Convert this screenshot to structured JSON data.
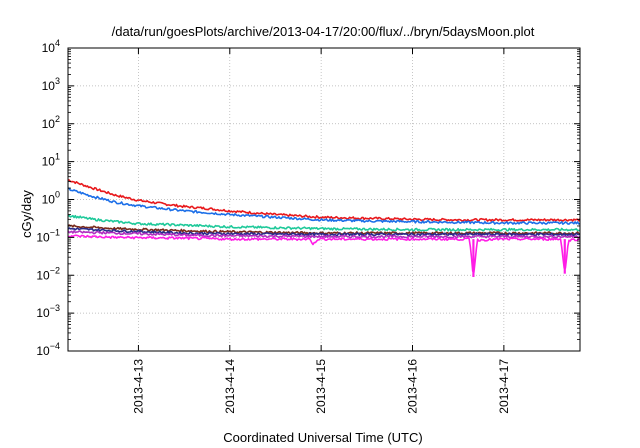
{
  "chart_data": {
    "type": "line",
    "title": "/data/run/goesPlots/archive/2013-04-17/20:00/flux/../bryn/5daysMoon.plot",
    "xlabel": "Coordinated Universal Time (UTC)",
    "ylabel": "cGy/day",
    "yscale": "log",
    "ylim": [
      0.0001,
      10000
    ],
    "y_tick_exponents": [
      -4,
      -3,
      -2,
      -1,
      0,
      1,
      2,
      3,
      4
    ],
    "xlim": [
      "2013-04-12T05:30",
      "2013-04-17T20:00"
    ],
    "x_ticks": [
      "2013-4-13",
      "2013-4-14",
      "2013-4-15",
      "2013-4-16",
      "2013-4-17"
    ],
    "grid": true,
    "legend": "none",
    "series": [
      {
        "color": "#e8191c",
        "values": [
          [
            "2013-04-12T05:30",
            3.3
          ],
          [
            "2013-04-12T12:00",
            2.0
          ],
          [
            "2013-04-12T18:00",
            1.3
          ],
          [
            "2013-04-13T00:00",
            0.95
          ],
          [
            "2013-04-13T06:00",
            0.78
          ],
          [
            "2013-04-13T12:00",
            0.65
          ],
          [
            "2013-04-13T18:00",
            0.58
          ],
          [
            "2013-04-14T00:00",
            0.5
          ],
          [
            "2013-04-14T12:00",
            0.4
          ],
          [
            "2013-04-15T00:00",
            0.34
          ],
          [
            "2013-04-15T12:00",
            0.32
          ],
          [
            "2013-04-16T00:00",
            0.3
          ],
          [
            "2013-04-16T12:00",
            0.29
          ],
          [
            "2013-04-17T00:00",
            0.29
          ],
          [
            "2013-04-17T12:00",
            0.29
          ],
          [
            "2013-04-17T20:00",
            0.29
          ]
        ]
      },
      {
        "color": "#1c6fe8",
        "values": [
          [
            "2013-04-12T05:30",
            1.9
          ],
          [
            "2013-04-12T12:00",
            1.2
          ],
          [
            "2013-04-12T18:00",
            0.85
          ],
          [
            "2013-04-13T00:00",
            0.68
          ],
          [
            "2013-04-13T06:00",
            0.58
          ],
          [
            "2013-04-13T12:00",
            0.5
          ],
          [
            "2013-04-13T18:00",
            0.45
          ],
          [
            "2013-04-14T00:00",
            0.4
          ],
          [
            "2013-04-14T12:00",
            0.34
          ],
          [
            "2013-04-15T00:00",
            0.29
          ],
          [
            "2013-04-15T12:00",
            0.27
          ],
          [
            "2013-04-16T00:00",
            0.26
          ],
          [
            "2013-04-16T12:00",
            0.25
          ],
          [
            "2013-04-17T00:00",
            0.24
          ],
          [
            "2013-04-17T12:00",
            0.24
          ],
          [
            "2013-04-17T20:00",
            0.24
          ]
        ]
      },
      {
        "color": "#1fc99a",
        "values": [
          [
            "2013-04-12T05:30",
            0.38
          ],
          [
            "2013-04-12T12:00",
            0.3
          ],
          [
            "2013-04-12T18:00",
            0.26
          ],
          [
            "2013-04-13T00:00",
            0.23
          ],
          [
            "2013-04-13T12:00",
            0.21
          ],
          [
            "2013-04-14T00:00",
            0.19
          ],
          [
            "2013-04-14T12:00",
            0.18
          ],
          [
            "2013-04-15T00:00",
            0.17
          ],
          [
            "2013-04-15T12:00",
            0.165
          ],
          [
            "2013-04-16T00:00",
            0.16
          ],
          [
            "2013-04-16T12:00",
            0.16
          ],
          [
            "2013-04-17T00:00",
            0.16
          ],
          [
            "2013-04-17T20:00",
            0.16
          ]
        ]
      },
      {
        "color": "#7a2a1a",
        "values": [
          [
            "2013-04-12T05:30",
            0.2
          ],
          [
            "2013-04-12T18:00",
            0.17
          ],
          [
            "2013-04-13T12:00",
            0.15
          ],
          [
            "2013-04-14T00:00",
            0.14
          ],
          [
            "2013-04-15T00:00",
            0.13
          ],
          [
            "2013-04-16T00:00",
            0.13
          ],
          [
            "2013-04-17T00:00",
            0.13
          ],
          [
            "2013-04-17T20:00",
            0.13
          ]
        ]
      },
      {
        "color": "#2a2a8a",
        "values": [
          [
            "2013-04-12T05:30",
            0.17
          ],
          [
            "2013-04-12T18:00",
            0.15
          ],
          [
            "2013-04-13T12:00",
            0.13
          ],
          [
            "2013-04-14T00:00",
            0.125
          ],
          [
            "2013-04-15T00:00",
            0.12
          ],
          [
            "2013-04-16T00:00",
            0.12
          ],
          [
            "2013-04-17T00:00",
            0.12
          ],
          [
            "2013-04-17T20:00",
            0.12
          ]
        ]
      },
      {
        "color": "#b02fc0",
        "values": [
          [
            "2013-04-12T05:30",
            0.14
          ],
          [
            "2013-04-12T18:00",
            0.13
          ],
          [
            "2013-04-13T12:00",
            0.115
          ],
          [
            "2013-04-14T00:00",
            0.11
          ],
          [
            "2013-04-15T00:00",
            0.105
          ],
          [
            "2013-04-16T00:00",
            0.105
          ],
          [
            "2013-04-17T00:00",
            0.105
          ],
          [
            "2013-04-17T20:00",
            0.105
          ]
        ]
      },
      {
        "color": "#ff1de6",
        "values": [
          [
            "2013-04-12T05:30",
            0.11
          ],
          [
            "2013-04-12T18:00",
            0.1
          ],
          [
            "2013-04-13T12:00",
            0.095
          ],
          [
            "2013-04-14T00:00",
            0.09
          ],
          [
            "2013-04-14T21:00",
            0.09
          ],
          [
            "2013-04-14T22:00",
            0.065
          ],
          [
            "2013-04-14T23:00",
            0.09
          ],
          [
            "2013-04-15T12:00",
            0.09
          ],
          [
            "2013-04-16T00:00",
            0.09
          ],
          [
            "2013-04-16T15:00",
            0.09
          ],
          [
            "2013-04-16T16:00",
            0.009
          ],
          [
            "2013-04-16T17:00",
            0.085
          ],
          [
            "2013-04-17T00:00",
            0.09
          ],
          [
            "2013-04-17T15:00",
            0.09
          ],
          [
            "2013-04-17T16:00",
            0.011
          ],
          [
            "2013-04-17T17:00",
            0.085
          ],
          [
            "2013-04-17T20:00",
            0.09
          ]
        ]
      }
    ]
  }
}
